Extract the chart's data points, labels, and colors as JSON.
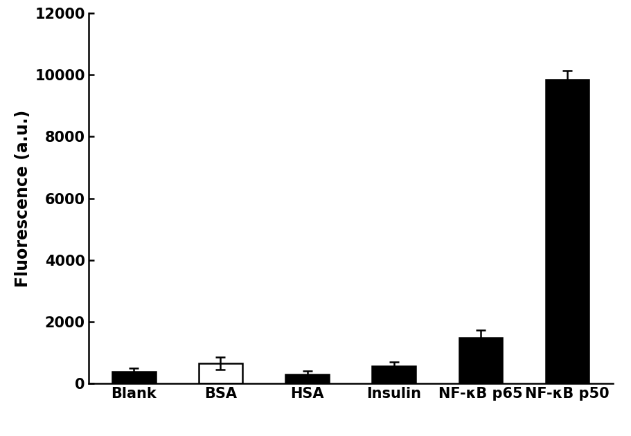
{
  "categories": [
    "Blank",
    "BSA",
    "HSA",
    "Insulin",
    "NF-κB p65",
    "NF-κB p50"
  ],
  "values": [
    390,
    650,
    310,
    580,
    1480,
    9850
  ],
  "errors": [
    120,
    200,
    100,
    120,
    250,
    280
  ],
  "bar_colors": [
    "#000000",
    "#ffffff",
    "#000000",
    "#000000",
    "#000000",
    "#000000"
  ],
  "bar_edgecolors": [
    "#000000",
    "#000000",
    "#000000",
    "#000000",
    "#000000",
    "#000000"
  ],
  "ylabel": "Fluorescence (a.u.)",
  "ylim": [
    0,
    12000
  ],
  "yticks": [
    0,
    2000,
    4000,
    6000,
    8000,
    10000,
    12000
  ],
  "background_color": "#ffffff",
  "bar_width": 0.5,
  "ylabel_fontsize": 17,
  "tick_fontsize": 15,
  "xlabel_fontsize": 15
}
